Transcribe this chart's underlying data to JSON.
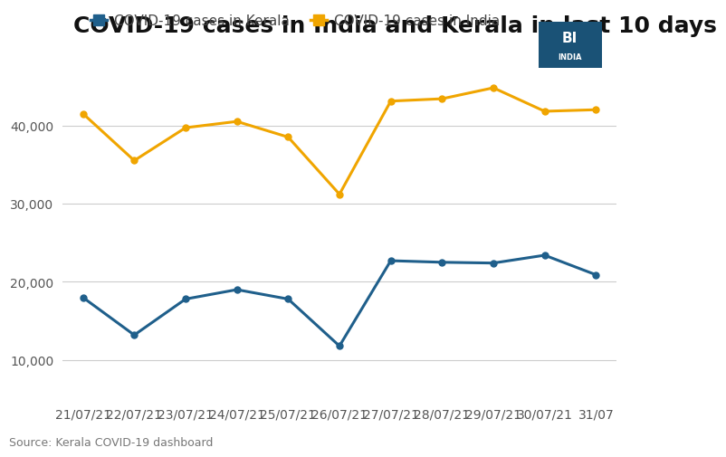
{
  "title": "COVID-19 cases in India and Kerala in last 10 days",
  "source": "Source: Kerala COVID-19 dashboard",
  "x_labels": [
    "21/07/21",
    "22/07/21",
    "23/07/21",
    "24/07/21",
    "25/07/21",
    "26/07/21",
    "27/07/21",
    "28/07/21",
    "29/07/21",
    "30/07/21",
    "31/07"
  ],
  "kerala_values": [
    18000,
    13200,
    17800,
    19000,
    17800,
    11800,
    22700,
    22500,
    22400,
    23400,
    20900
  ],
  "india_values": [
    41500,
    35500,
    39700,
    40500,
    38500,
    31200,
    43100,
    43400,
    44800,
    41800,
    42000
  ],
  "kerala_color": "#1f5f8b",
  "india_color": "#f0a500",
  "legend_kerala": "COVID-19 cases in Kerala",
  "legend_india": "COVID-19 cases in India",
  "yticks": [
    10000,
    20000,
    30000,
    40000
  ],
  "ylim": [
    5000,
    50000
  ],
  "background_color": "#ffffff",
  "bi_box_color": "#1a5276",
  "title_fontsize": 18,
  "tick_fontsize": 10,
  "legend_fontsize": 11,
  "source_fontsize": 9
}
